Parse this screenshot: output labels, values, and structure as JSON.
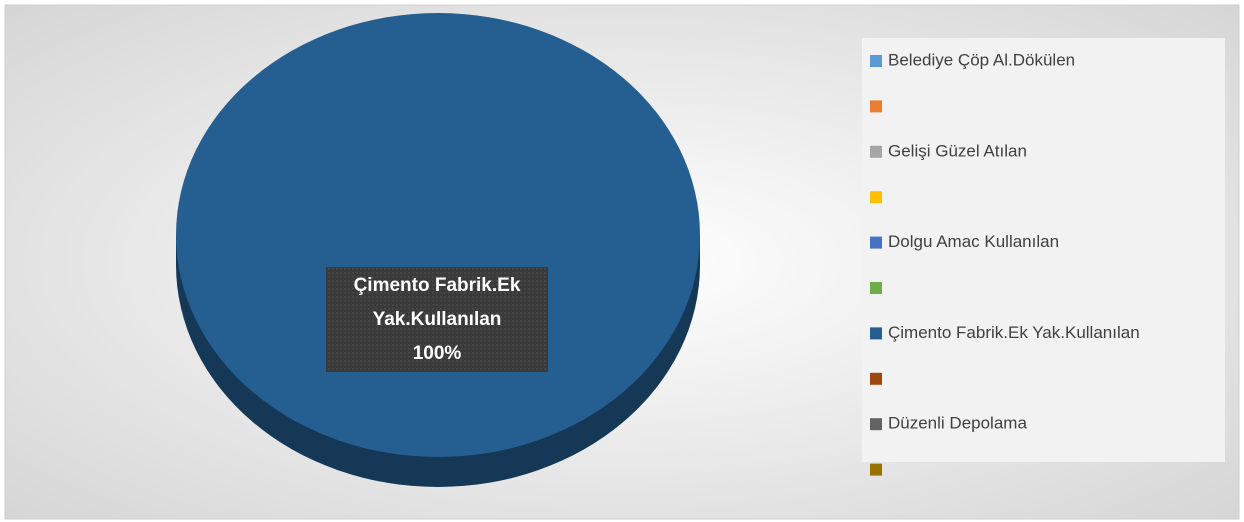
{
  "chart_data": {
    "type": "pie",
    "categories": [
      "Belediye Çöp Al.Dökülen",
      null,
      "Gelişi Güzel Atılan",
      null,
      "Dolgu Amac Kullanılan",
      null,
      "Çimento Fabrik.Ek Yak.Kullanılan",
      null,
      "Düzenli Depolama",
      null
    ],
    "values": [
      0,
      0,
      0,
      0,
      0,
      0,
      100,
      0,
      0,
      0
    ],
    "value_labels": [
      null,
      null,
      null,
      null,
      null,
      null,
      "100%",
      null,
      null,
      null
    ],
    "colors": [
      "#5b9bd5",
      "#ed7d31",
      "#a5a5a5",
      "#ffc000",
      "#4472c4",
      "#70ad47",
      "#255e91",
      "#9e480e",
      "#636363",
      "#997300"
    ],
    "legend": "right"
  }
}
